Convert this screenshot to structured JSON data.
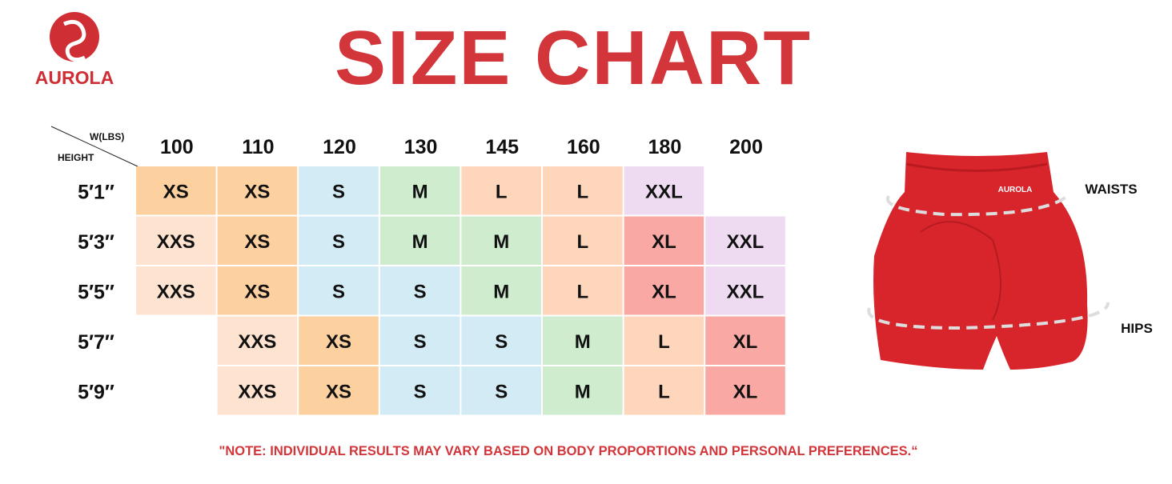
{
  "logo": {
    "text": "AUROLA"
  },
  "title": "SIZE CHART",
  "table": {
    "corner": {
      "column_label": "W(LBS)",
      "row_label": "HEIGHT"
    },
    "columns": [
      "100",
      "110",
      "120",
      "130",
      "145",
      "160",
      "180",
      "200"
    ],
    "rows": [
      {
        "label": "5′1″",
        "cells": [
          "XS",
          "XS",
          "S",
          "M",
          "L",
          "L",
          "XXL",
          null
        ]
      },
      {
        "label": "5′3″",
        "cells": [
          "XXS",
          "XS",
          "S",
          "M",
          "M",
          "L",
          "XL",
          "XXL"
        ]
      },
      {
        "label": "5′5″",
        "cells": [
          "XXS",
          "XS",
          "S",
          "S",
          "M",
          "L",
          "XL",
          "XXL"
        ]
      },
      {
        "label": "5′7″",
        "cells": [
          null,
          "XXS",
          "XS",
          "S",
          "S",
          "M",
          "L",
          "XL"
        ]
      },
      {
        "label": "5′9″",
        "cells": [
          null,
          "XXS",
          "XS",
          "S",
          "S",
          "M",
          "L",
          "XL"
        ]
      }
    ],
    "size_colors": {
      "XXS": "#fde3d0",
      "XS": "#fcd09f",
      "S": "#d3ebf4",
      "M": "#cfeccf",
      "L": "#fdd6bb",
      "XL": "#f9a8a4",
      "XXL": "#eedbf2"
    }
  },
  "product": {
    "brand_text": "AUROLA",
    "waist_label": "WAISTS",
    "hip_label": "HIPS"
  },
  "note": "\"NOTE: INDIVIDUAL RESULTS MAY VARY BASED ON BODY PROPORTIONS AND PERSONAL PREFERENCES.“"
}
